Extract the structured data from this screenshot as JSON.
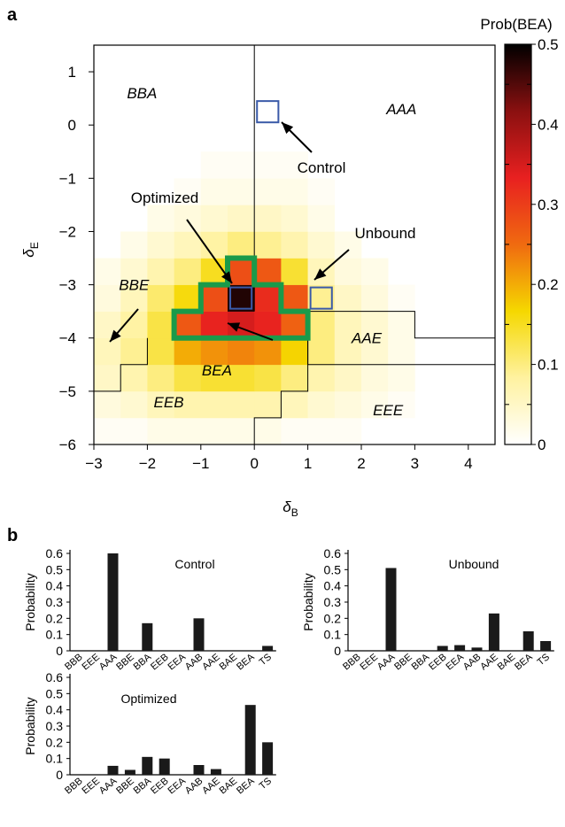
{
  "panels": {
    "a": "a",
    "b": "b"
  },
  "colors": {
    "axis": "#000000",
    "optimized_outline": "#1a9a4a",
    "marker_box": "#3a5aa8",
    "bar_fill": "#1a1a1a"
  },
  "chart_data": [
    {
      "type": "heatmap",
      "xlabel": "δB",
      "ylabel": "δE",
      "xlim": [
        -3,
        4.5
      ],
      "ylim": [
        -6,
        1.5
      ],
      "xticks": [
        -3,
        -2,
        -1,
        0,
        1,
        2,
        3,
        4
      ],
      "yticks": [
        1,
        0,
        -1,
        -2,
        -3,
        -4,
        -5,
        -6
      ],
      "cell_size": 0.5,
      "colorbar": {
        "title": "Prob(BEA)",
        "range": [
          0,
          0.5
        ],
        "ticks": [
          0,
          0.1,
          0.2,
          0.3,
          0.4,
          0.5
        ],
        "stops": [
          "#ffffff",
          "#fff2a0",
          "#f5d800",
          "#f06a10",
          "#e82020",
          "#8a1010",
          "#000000"
        ]
      },
      "region_labels": [
        "BBA",
        "AAA",
        "BBE",
        "AAE",
        "BEA",
        "EEB",
        "EEE"
      ],
      "markers": [
        {
          "label": "Control",
          "x": 0.25,
          "y": 0.25
        },
        {
          "label": "Unbound",
          "x": 1.25,
          "y": -3.25
        },
        {
          "label": "Optimized",
          "x": -0.25,
          "y": -3.25
        }
      ],
      "arrow_labels": {
        "control": "Control",
        "optimized": "Optimized",
        "unbound": "Unbound"
      },
      "cells": [
        {
          "x": -2.75,
          "y": -5.75,
          "v": 0.01
        },
        {
          "x": -2.25,
          "y": -5.75,
          "v": 0.01
        },
        {
          "x": -1.75,
          "y": -5.75,
          "v": 0.02
        },
        {
          "x": -1.25,
          "y": -5.75,
          "v": 0.02
        },
        {
          "x": -0.75,
          "y": -5.75,
          "v": 0.02
        },
        {
          "x": -0.25,
          "y": -5.75,
          "v": 0.02
        },
        {
          "x": 0.25,
          "y": -5.75,
          "v": 0.02
        },
        {
          "x": 0.75,
          "y": -5.75,
          "v": 0.01
        },
        {
          "x": 1.25,
          "y": -5.75,
          "v": 0.01
        },
        {
          "x": 1.75,
          "y": -5.75,
          "v": 0.01
        },
        {
          "x": -2.75,
          "y": -5.25,
          "v": 0.03
        },
        {
          "x": -2.25,
          "y": -5.25,
          "v": 0.04
        },
        {
          "x": -1.75,
          "y": -5.25,
          "v": 0.06
        },
        {
          "x": -1.25,
          "y": -5.25,
          "v": 0.07
        },
        {
          "x": -0.75,
          "y": -5.25,
          "v": 0.07
        },
        {
          "x": -0.25,
          "y": -5.25,
          "v": 0.07
        },
        {
          "x": 0.25,
          "y": -5.25,
          "v": 0.07
        },
        {
          "x": 0.75,
          "y": -5.25,
          "v": 0.06
        },
        {
          "x": 1.25,
          "y": -5.25,
          "v": 0.04
        },
        {
          "x": 1.75,
          "y": -5.25,
          "v": 0.03
        },
        {
          "x": 2.25,
          "y": -5.25,
          "v": 0.02
        },
        {
          "x": 2.75,
          "y": -5.25,
          "v": 0.01
        },
        {
          "x": -2.75,
          "y": -4.75,
          "v": 0.05
        },
        {
          "x": -2.25,
          "y": -4.75,
          "v": 0.07
        },
        {
          "x": -1.75,
          "y": -4.75,
          "v": 0.1
        },
        {
          "x": -1.25,
          "y": -4.75,
          "v": 0.13
        },
        {
          "x": -0.75,
          "y": -4.75,
          "v": 0.14
        },
        {
          "x": -0.25,
          "y": -4.75,
          "v": 0.14
        },
        {
          "x": 0.25,
          "y": -4.75,
          "v": 0.13
        },
        {
          "x": 0.75,
          "y": -4.75,
          "v": 0.1
        },
        {
          "x": 1.25,
          "y": -4.75,
          "v": 0.07
        },
        {
          "x": 1.75,
          "y": -4.75,
          "v": 0.05
        },
        {
          "x": 2.25,
          "y": -4.75,
          "v": 0.03
        },
        {
          "x": 2.75,
          "y": -4.75,
          "v": 0.02
        },
        {
          "x": -2.75,
          "y": -4.25,
          "v": 0.06
        },
        {
          "x": -2.25,
          "y": -4.25,
          "v": 0.09
        },
        {
          "x": -1.75,
          "y": -4.25,
          "v": 0.13
        },
        {
          "x": -1.25,
          "y": -4.25,
          "v": 0.2
        },
        {
          "x": -0.75,
          "y": -4.25,
          "v": 0.22
        },
        {
          "x": -0.25,
          "y": -4.25,
          "v": 0.23
        },
        {
          "x": 0.25,
          "y": -4.25,
          "v": 0.22
        },
        {
          "x": 0.75,
          "y": -4.25,
          "v": 0.17
        },
        {
          "x": 1.25,
          "y": -4.25,
          "v": 0.1
        },
        {
          "x": 1.75,
          "y": -4.25,
          "v": 0.06
        },
        {
          "x": 2.25,
          "y": -4.25,
          "v": 0.04
        },
        {
          "x": 2.75,
          "y": -4.25,
          "v": 0.02
        },
        {
          "x": -2.75,
          "y": -3.75,
          "v": 0.05
        },
        {
          "x": -2.25,
          "y": -3.75,
          "v": 0.08
        },
        {
          "x": -1.75,
          "y": -3.75,
          "v": 0.13
        },
        {
          "x": -1.25,
          "y": -3.75,
          "v": 0.27
        },
        {
          "x": -0.75,
          "y": -3.75,
          "v": 0.33
        },
        {
          "x": -0.25,
          "y": -3.75,
          "v": 0.35
        },
        {
          "x": 0.25,
          "y": -3.75,
          "v": 0.33
        },
        {
          "x": 0.75,
          "y": -3.75,
          "v": 0.26
        },
        {
          "x": 1.25,
          "y": -3.75,
          "v": 0.1
        },
        {
          "x": 1.75,
          "y": -3.75,
          "v": 0.06
        },
        {
          "x": 2.25,
          "y": -3.75,
          "v": 0.04
        },
        {
          "x": 2.75,
          "y": -3.75,
          "v": 0.02
        },
        {
          "x": -2.75,
          "y": -3.25,
          "v": 0.03
        },
        {
          "x": -2.25,
          "y": -3.25,
          "v": 0.06
        },
        {
          "x": -1.75,
          "y": -3.25,
          "v": 0.11
        },
        {
          "x": -1.25,
          "y": -3.25,
          "v": 0.16
        },
        {
          "x": -0.75,
          "y": -3.25,
          "v": 0.28
        },
        {
          "x": -0.25,
          "y": -3.25,
          "v": 0.48
        },
        {
          "x": 0.25,
          "y": -3.25,
          "v": 0.32
        },
        {
          "x": 0.75,
          "y": -3.25,
          "v": 0.27
        },
        {
          "x": 1.25,
          "y": -3.25,
          "v": 0.09
        },
        {
          "x": 1.75,
          "y": -3.25,
          "v": 0.05
        },
        {
          "x": 2.25,
          "y": -3.25,
          "v": 0.03
        },
        {
          "x": 2.75,
          "y": -3.25,
          "v": 0.01
        },
        {
          "x": -2.75,
          "y": -2.75,
          "v": 0.02
        },
        {
          "x": -2.25,
          "y": -2.75,
          "v": 0.04
        },
        {
          "x": -1.75,
          "y": -2.75,
          "v": 0.07
        },
        {
          "x": -1.25,
          "y": -2.75,
          "v": 0.1
        },
        {
          "x": -0.75,
          "y": -2.75,
          "v": 0.15
        },
        {
          "x": -0.25,
          "y": -2.75,
          "v": 0.28
        },
        {
          "x": 0.25,
          "y": -2.75,
          "v": 0.27
        },
        {
          "x": 0.75,
          "y": -2.75,
          "v": 0.14
        },
        {
          "x": 1.25,
          "y": -2.75,
          "v": 0.06
        },
        {
          "x": 1.75,
          "y": -2.75,
          "v": 0.03
        },
        {
          "x": 2.25,
          "y": -2.75,
          "v": 0.02
        },
        {
          "x": -2.25,
          "y": -2.25,
          "v": 0.02
        },
        {
          "x": -1.75,
          "y": -2.25,
          "v": 0.04
        },
        {
          "x": -1.25,
          "y": -2.25,
          "v": 0.06
        },
        {
          "x": -0.75,
          "y": -2.25,
          "v": 0.08
        },
        {
          "x": -0.25,
          "y": -2.25,
          "v": 0.1
        },
        {
          "x": 0.25,
          "y": -2.25,
          "v": 0.09
        },
        {
          "x": 0.75,
          "y": -2.25,
          "v": 0.07
        },
        {
          "x": 1.25,
          "y": -2.25,
          "v": 0.04
        },
        {
          "x": 1.75,
          "y": -2.25,
          "v": 0.02
        },
        {
          "x": -1.75,
          "y": -1.75,
          "v": 0.02
        },
        {
          "x": -1.25,
          "y": -1.75,
          "v": 0.03
        },
        {
          "x": -0.75,
          "y": -1.75,
          "v": 0.04
        },
        {
          "x": -0.25,
          "y": -1.75,
          "v": 0.05
        },
        {
          "x": 0.25,
          "y": -1.75,
          "v": 0.05
        },
        {
          "x": 0.75,
          "y": -1.75,
          "v": 0.04
        },
        {
          "x": 1.25,
          "y": -1.75,
          "v": 0.02
        },
        {
          "x": -1.25,
          "y": -1.25,
          "v": 0.01
        },
        {
          "x": -0.75,
          "y": -1.25,
          "v": 0.02
        },
        {
          "x": -0.25,
          "y": -1.25,
          "v": 0.02
        },
        {
          "x": 0.25,
          "y": -1.25,
          "v": 0.02
        },
        {
          "x": 0.75,
          "y": -1.25,
          "v": 0.02
        },
        {
          "x": 1.25,
          "y": -1.25,
          "v": 0.01
        },
        {
          "x": -0.75,
          "y": -0.75,
          "v": 0.01
        },
        {
          "x": -0.25,
          "y": -0.75,
          "v": 0.01
        },
        {
          "x": 0.25,
          "y": -0.75,
          "v": 0.01
        },
        {
          "x": 0.75,
          "y": -0.75,
          "v": 0.01
        }
      ]
    },
    {
      "type": "bar",
      "title": "Control",
      "ylabel": "Probability",
      "ylim": [
        0,
        0.6
      ],
      "yticks": [
        0,
        0.1,
        0.2,
        0.3,
        0.4,
        0.5,
        0.6
      ],
      "categories": [
        "BBB",
        "EEE",
        "AAA",
        "BBE",
        "BBA",
        "EEB",
        "EEA",
        "AAB",
        "AAE",
        "BAE",
        "BEA",
        "TS"
      ],
      "values": [
        0,
        0,
        0.6,
        0,
        0.17,
        0,
        0,
        0.2,
        0,
        0,
        0,
        0.03
      ]
    },
    {
      "type": "bar",
      "title": "Unbound",
      "ylabel": "Probability",
      "ylim": [
        0,
        0.6
      ],
      "yticks": [
        0,
        0.1,
        0.2,
        0.3,
        0.4,
        0.5,
        0.6
      ],
      "categories": [
        "BBB",
        "EEE",
        "AAA",
        "BBE",
        "BBA",
        "EEB",
        "EEA",
        "AAB",
        "AAE",
        "BAE",
        "BEA",
        "TS"
      ],
      "values": [
        0,
        0,
        0.51,
        0,
        0,
        0.03,
        0.035,
        0.02,
        0.23,
        0,
        0.12,
        0.06
      ]
    },
    {
      "type": "bar",
      "title": "Optimized",
      "ylabel": "Probability",
      "ylim": [
        0,
        0.6
      ],
      "yticks": [
        0,
        0.1,
        0.2,
        0.3,
        0.4,
        0.5,
        0.6
      ],
      "categories": [
        "BBB",
        "EEE",
        "AAA",
        "BBE",
        "BBA",
        "EEB",
        "EEA",
        "AAB",
        "AAE",
        "BAE",
        "BEA",
        "TS"
      ],
      "values": [
        0,
        0,
        0.055,
        0.03,
        0.11,
        0.1,
        0,
        0.06,
        0.035,
        0,
        0.43,
        0.2
      ]
    }
  ]
}
